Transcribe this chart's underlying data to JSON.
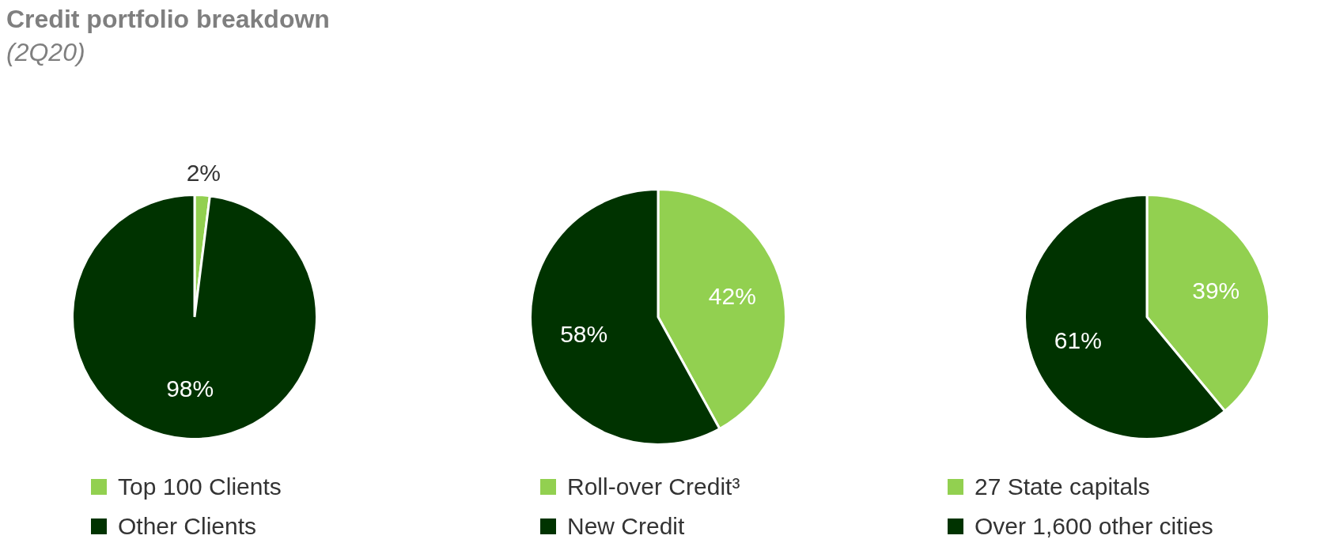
{
  "chart_data": [
    {
      "type": "pie",
      "title": "Credit portfolio breakdown",
      "subtitle": "(2Q20)",
      "categories": [
        "Top 100 Clients",
        "Other Clients"
      ],
      "values": [
        2,
        98
      ],
      "value_labels": [
        "2%",
        "98%"
      ],
      "colors": [
        "#92d050",
        "#003300"
      ],
      "legend": "bottom"
    },
    {
      "type": "pie",
      "categories": [
        "Roll-over Credit³",
        "New Credit"
      ],
      "values": [
        42,
        58
      ],
      "value_labels": [
        "42%",
        "58%"
      ],
      "colors": [
        "#92d050",
        "#003300"
      ],
      "legend": "bottom"
    },
    {
      "type": "pie",
      "categories": [
        "27 State capitals",
        "Over 1,600 other cities"
      ],
      "values": [
        39,
        61
      ],
      "value_labels": [
        "39%",
        "61%"
      ],
      "colors": [
        "#92d050",
        "#003300"
      ],
      "legend": "bottom"
    }
  ]
}
